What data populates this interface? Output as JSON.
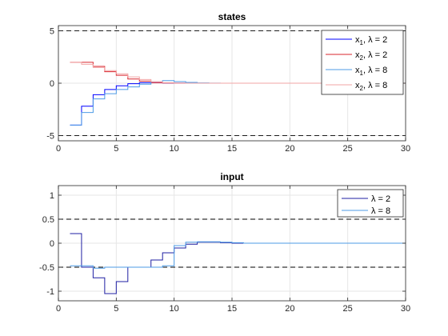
{
  "chart_data": [
    {
      "type": "line",
      "step": true,
      "title": "states",
      "xlabel": "",
      "ylabel": "",
      "xlim": [
        0,
        30
      ],
      "ylim": [
        -5.5,
        5.5
      ],
      "xticks": [
        0,
        5,
        10,
        15,
        20,
        25,
        30
      ],
      "yticks": [
        -5,
        0,
        5
      ],
      "grid": true,
      "legend_position": "top-right",
      "constraints": [
        5,
        -5
      ],
      "x": [
        1,
        2,
        3,
        4,
        5,
        6,
        7,
        8,
        9,
        10,
        11,
        12,
        13,
        14,
        15,
        16,
        17,
        18,
        19,
        20,
        21,
        22,
        23,
        24,
        25,
        26,
        27,
        28,
        29,
        30
      ],
      "series": [
        {
          "name": "x₁, λ = 2",
          "name_parts": [
            "x",
            "1",
            ", λ = 2"
          ],
          "color": "#0000ff",
          "values": [
            -4,
            -2.2,
            -1.1,
            -0.6,
            -0.25,
            -0.05,
            0.05,
            0.05,
            0.02,
            0.01,
            0,
            0,
            0,
            0,
            0,
            0,
            0,
            0,
            0,
            0,
            0,
            0,
            0,
            0,
            0,
            0,
            0,
            0,
            0,
            0
          ]
        },
        {
          "name": "x₂, λ = 2",
          "name_parts": [
            "x",
            "2",
            ", λ = 2"
          ],
          "color": "#d9262e",
          "values": [
            2,
            2,
            1.6,
            1.1,
            0.75,
            0.4,
            0.2,
            0.05,
            0.02,
            0.01,
            0,
            0,
            0,
            0,
            0,
            0,
            0,
            0,
            0,
            0,
            0,
            0,
            0,
            0,
            0,
            0,
            0,
            0,
            0,
            0
          ]
        },
        {
          "name": "x₁, λ = 8",
          "name_parts": [
            "x",
            "1",
            ", λ = 8"
          ],
          "color": "#4d9be6",
          "values": [
            -4,
            -2.8,
            -1.5,
            -1.0,
            -0.6,
            -0.35,
            -0.1,
            0.15,
            0.25,
            0.15,
            0.08,
            0.03,
            0.01,
            0,
            0,
            0,
            0,
            0,
            0,
            0,
            0,
            0,
            0,
            0,
            0,
            0,
            0,
            0,
            0,
            0
          ]
        },
        {
          "name": "x₂, λ = 8",
          "name_parts": [
            "x",
            "2",
            ", λ = 8"
          ],
          "color": "#f2a6a6",
          "values": [
            2,
            1.8,
            1.5,
            1.2,
            0.9,
            0.6,
            0.35,
            0.15,
            0.05,
            0.01,
            0,
            0,
            0,
            0,
            0,
            0,
            0,
            0,
            0,
            0,
            0,
            0,
            0,
            0,
            0,
            0,
            0,
            0,
            0,
            0
          ]
        }
      ]
    },
    {
      "type": "line",
      "step": true,
      "title": "input",
      "xlabel": "",
      "ylabel": "",
      "xlim": [
        0,
        30
      ],
      "ylim": [
        -1.2,
        1.2
      ],
      "xticks": [
        0,
        5,
        10,
        15,
        20,
        25,
        30
      ],
      "yticks": [
        -1,
        -0.5,
        0,
        0.5,
        1
      ],
      "grid": true,
      "legend_position": "top-right",
      "constraints": [
        0.5,
        -0.5
      ],
      "x": [
        1,
        2,
        3,
        4,
        5,
        6,
        7,
        8,
        9,
        10,
        11,
        12,
        13,
        14,
        15,
        16,
        17,
        18,
        19,
        20,
        21,
        22,
        23,
        24,
        25,
        26,
        27,
        28,
        29,
        30
      ],
      "series": [
        {
          "name": "λ = 2",
          "color": "#1f1fa3",
          "values": [
            0.2,
            -0.5,
            -0.72,
            -1.05,
            -0.8,
            -0.5,
            -0.5,
            -0.35,
            -0.2,
            -0.1,
            -0.02,
            0.02,
            0.02,
            0.01,
            0,
            0,
            0,
            0,
            0,
            0,
            0,
            0,
            0,
            0,
            0,
            0,
            0,
            0,
            0,
            0
          ]
        },
        {
          "name": "λ = 8",
          "color": "#4d9be6",
          "values": [
            -0.47,
            -0.47,
            -0.52,
            -0.5,
            -0.5,
            -0.5,
            -0.5,
            -0.5,
            -0.47,
            -0.05,
            0.02,
            0.03,
            0.03,
            0.02,
            0.01,
            0,
            0,
            0,
            0,
            0,
            0,
            0,
            0,
            0,
            0,
            0,
            0,
            0,
            0,
            0
          ]
        }
      ]
    }
  ]
}
